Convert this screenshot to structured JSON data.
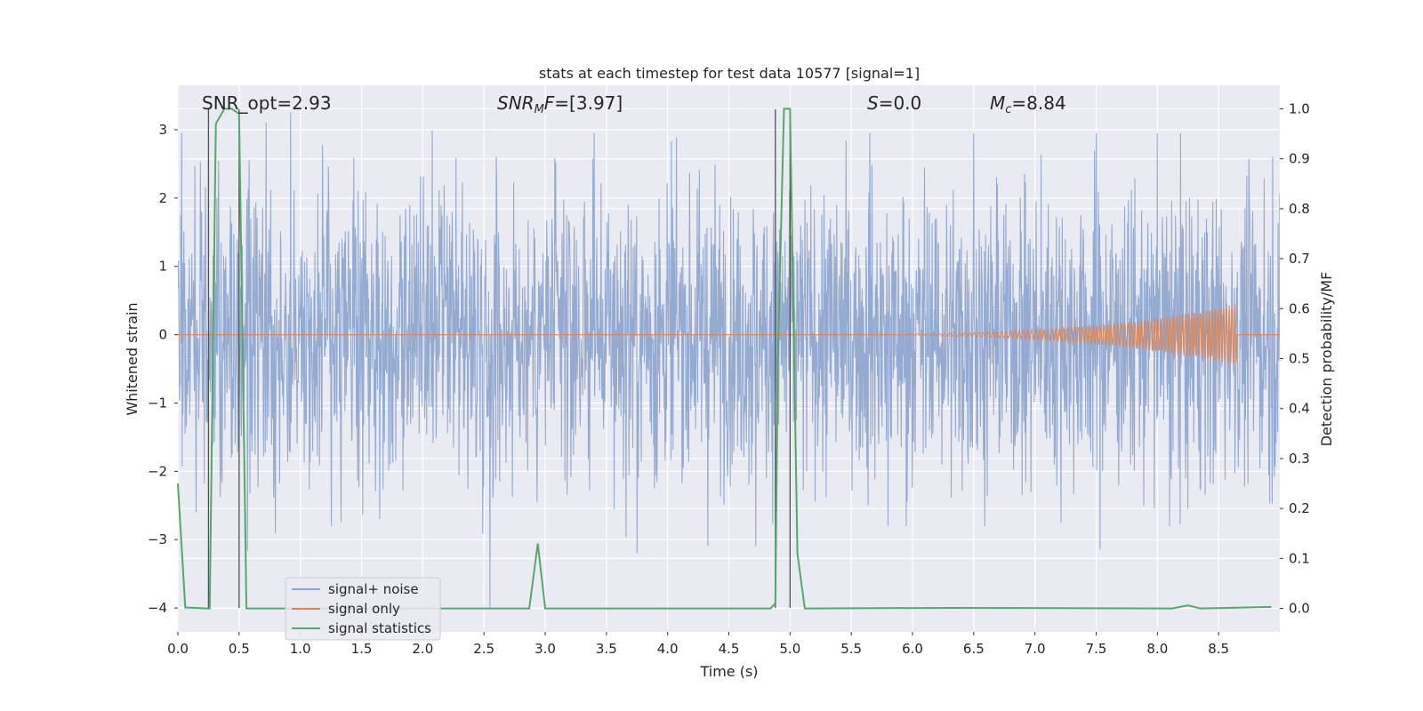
{
  "chart_data": {
    "type": "line",
    "title": "stats at each timestep for test data 10577 [signal=1]",
    "xlabel": "Time (s)",
    "ylabel": "Whitened strain",
    "y2label": "Detection probability/MF",
    "xlim": [
      0.0,
      9.0
    ],
    "ylim": [
      -4.35,
      3.65
    ],
    "y2lim": [
      -0.047,
      1.047
    ],
    "x_ticks": [
      0.0,
      0.5,
      1.0,
      1.5,
      2.0,
      2.5,
      3.0,
      3.5,
      4.0,
      4.5,
      5.0,
      5.5,
      6.0,
      6.5,
      7.0,
      7.5,
      8.0,
      8.5
    ],
    "y_ticks": [
      -4,
      -3,
      -2,
      -1,
      0,
      1,
      2,
      3
    ],
    "y2_ticks": [
      0.0,
      0.1,
      0.2,
      0.3,
      0.4,
      0.5,
      0.6,
      0.7,
      0.8,
      0.9,
      1.0
    ],
    "grid": true,
    "legend_position": "lower-left",
    "annotations": [
      {
        "id": "snr-opt",
        "text": "SNR_opt=2.93",
        "x": 0.2
      },
      {
        "id": "snr-mf",
        "text": "=[3.97]",
        "italic_prefix": "SNR",
        "sub": "M",
        "italic_suffix": "F",
        "x": 2.6
      },
      {
        "id": "s-value",
        "text": "=0.0",
        "italic_prefix": "S",
        "x": 5.6
      },
      {
        "id": "mc-value",
        "text": "=8.84",
        "italic_prefix": "M",
        "sub": "c",
        "x": 6.6
      }
    ],
    "vertical_markers": [
      0.25,
      0.5,
      4.88,
      5.0
    ],
    "series": [
      {
        "name": "signal+ noise",
        "color": "#8fa6cf",
        "kind": "noise",
        "approx_amplitude_std": 1.05,
        "range": [
          -4.0,
          3.3
        ],
        "spike_peaks": [
          {
            "x": 0.03,
            "y": 2.95
          },
          {
            "x": 0.72,
            "y": 3.1
          },
          {
            "x": 0.92,
            "y": 3.25
          },
          {
            "x": 2.6,
            "y": 2.6
          },
          {
            "x": 3.4,
            "y": 2.95
          },
          {
            "x": 5.65,
            "y": 2.95
          },
          {
            "x": 6.5,
            "y": 2.95
          },
          {
            "x": 7.5,
            "y": 2.95
          },
          {
            "x": 8.0,
            "y": 2.95
          },
          {
            "x": 0.15,
            "y": -2.6
          },
          {
            "x": 2.55,
            "y": -4.0
          },
          {
            "x": 3.75,
            "y": -3.2
          },
          {
            "x": 4.72,
            "y": -3.1
          },
          {
            "x": 5.8,
            "y": -2.8
          },
          {
            "x": 5.95,
            "y": -2.8
          },
          {
            "x": 8.1,
            "y": -2.8
          },
          {
            "x": 8.25,
            "y": -2.55
          }
        ]
      },
      {
        "name": "signal only",
        "color": "#dd8452",
        "kind": "chirp",
        "start_x": 4.9,
        "end_x": 8.65,
        "peak_amplitude": 0.45
      },
      {
        "name": "signal statistics",
        "color": "#55a868",
        "axis": "right",
        "x": [
          0.0,
          0.06,
          0.24,
          0.26,
          0.31,
          0.38,
          0.44,
          0.5,
          0.53,
          0.56,
          2.87,
          2.94,
          3.0,
          4.84,
          4.88,
          4.9,
          4.95,
          5.0,
          5.06,
          5.12,
          6.3,
          8.12,
          8.25,
          8.35,
          8.93
        ],
        "values": [
          0.25,
          0.002,
          0.0,
          0.0,
          0.97,
          1.0,
          1.0,
          0.99,
          0.5,
          0.0,
          0.0,
          0.13,
          0.0,
          0.0,
          0.01,
          0.5,
          1.0,
          1.0,
          0.11,
          0.0,
          0.001,
          0.0,
          0.006,
          0.0,
          0.003
        ]
      }
    ]
  }
}
